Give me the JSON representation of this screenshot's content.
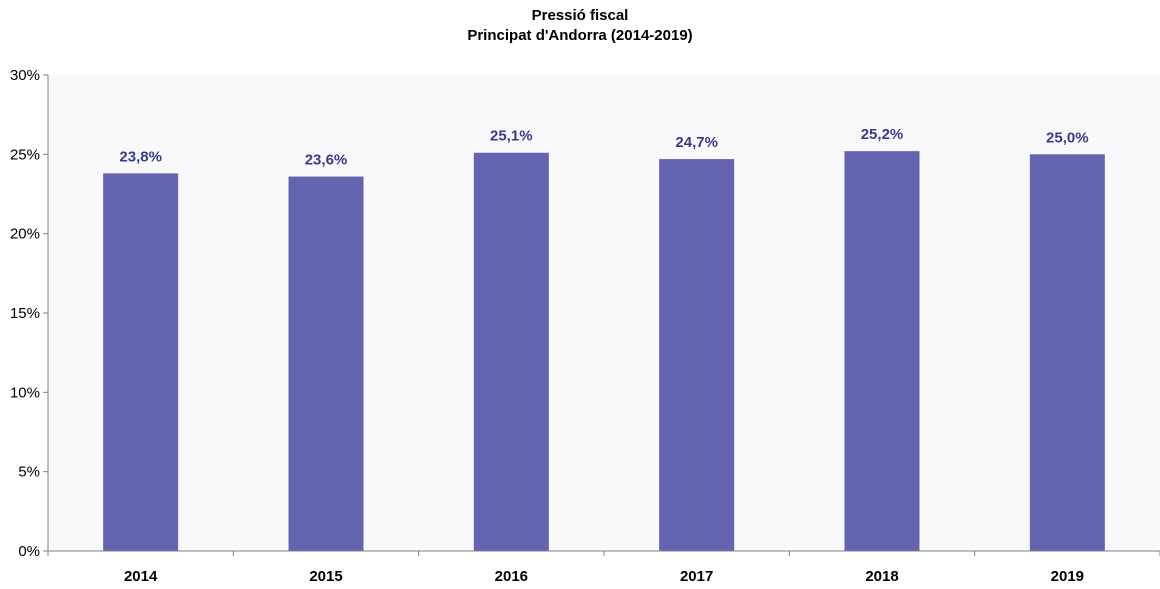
{
  "chart_data": {
    "type": "bar",
    "title": "Pressió fiscal",
    "subtitle": "Principat d'Andorra (2014-2019)",
    "xlabel": "",
    "ylabel": "",
    "categories": [
      "2014",
      "2015",
      "2016",
      "2017",
      "2018",
      "2019"
    ],
    "values": [
      23.8,
      23.6,
      25.1,
      24.7,
      25.2,
      25.0
    ],
    "data_labels": [
      "23,8%",
      "23,6%",
      "25,1%",
      "24,7%",
      "25,2%",
      "25,0%"
    ],
    "ylim": [
      0,
      30
    ],
    "yticks": [
      0,
      5,
      10,
      15,
      20,
      25,
      30
    ],
    "ytick_labels": [
      "0%",
      "5%",
      "10%",
      "15%",
      "20%",
      "25%",
      "30%"
    ],
    "grid": false,
    "legend": "none",
    "colors": {
      "bar": "#6464b0",
      "plot_background": "#f9f9fc",
      "data_label": "#3a3a8c",
      "axis": "#808080"
    }
  }
}
